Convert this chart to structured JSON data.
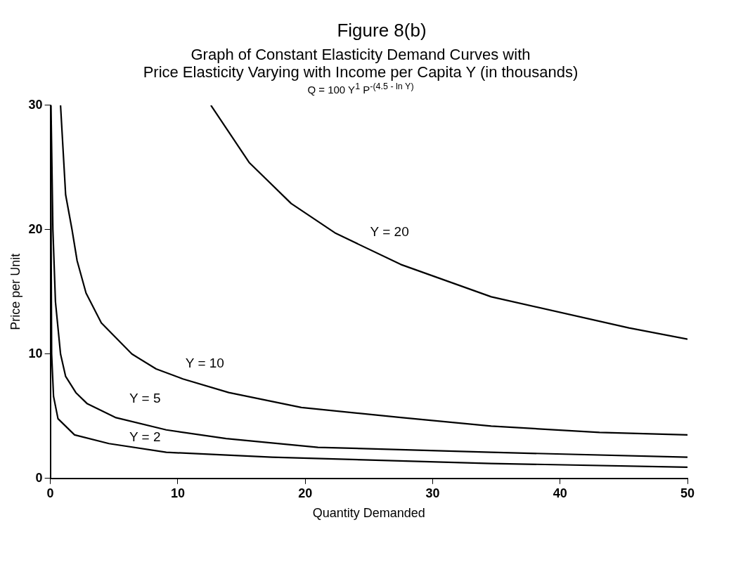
{
  "chart_data": {
    "type": "line",
    "title": "Figure 8(b)",
    "subtitle": "Graph of Constant Elasticity Demand Curves with\nPrice Elasticity Varying with Income per Capita Y (in  thousands)",
    "annotations": [
      "Q = 100 Y$^{1}$ P$^{-(4.5 - ln Y)}$"
    ],
    "xlabel": "Quantity Demanded",
    "ylabel": "Price per Unit",
    "xlim": [
      0,
      50
    ],
    "ylim": [
      0,
      30
    ],
    "xticks": [
      0,
      10,
      20,
      30,
      40,
      50
    ],
    "yticks": [
      0,
      10,
      20,
      30
    ],
    "grid": false,
    "marker": "none",
    "line_style": "solid",
    "series": [
      {
        "name": "Y = 2",
        "color": "#000000",
        "x": [
          0.01,
          0.1,
          0.25,
          0.6,
          1.9,
          4.6,
          9.1,
          17.4,
          34.6,
          50
        ],
        "values": [
          30,
          10,
          6.6,
          4.8,
          3.5,
          2.8,
          2.1,
          1.7,
          1.2,
          0.9
        ]
      },
      {
        "name": "Y = 5",
        "color": "#000000",
        "x": [
          0.05,
          0.2,
          0.4,
          0.8,
          1.2,
          2.0,
          2.9,
          5.1,
          9.1,
          13.8,
          21.0,
          34.6,
          50
        ],
        "values": [
          30,
          20,
          14.2,
          10.0,
          8.2,
          6.9,
          6.0,
          4.9,
          3.9,
          3.2,
          2.5,
          2.1,
          1.7
        ]
      },
      {
        "name": "Y = 10",
        "color": "#000000",
        "x": [
          0.8,
          1.2,
          1.7,
          2.1,
          2.8,
          4.0,
          6.4,
          8.3,
          10.4,
          14.0,
          19.7,
          27.5,
          34.6,
          43.1,
          50
        ],
        "values": [
          30,
          22.8,
          20,
          17.5,
          14.9,
          12.5,
          10.0,
          8.8,
          8.0,
          6.9,
          5.7,
          4.9,
          4.2,
          3.7,
          3.5
        ]
      },
      {
        "name": "Y = 20",
        "color": "#000000",
        "x": [
          12.6,
          15.6,
          18.9,
          22.4,
          27.5,
          34.6,
          45.4,
          50
        ],
        "values": [
          30,
          25.4,
          22.1,
          19.7,
          17.2,
          14.6,
          12.1,
          11.2
        ]
      }
    ]
  }
}
